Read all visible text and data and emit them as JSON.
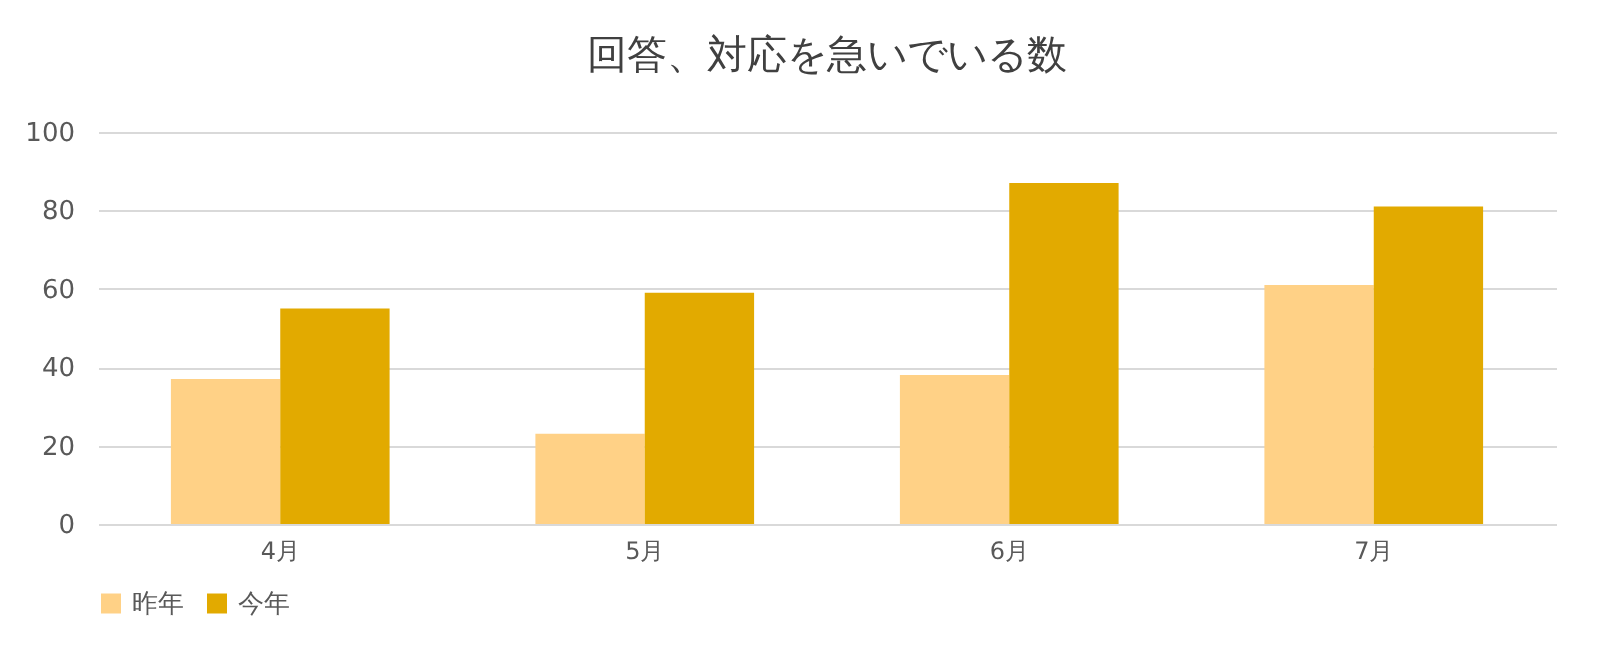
{
  "chart_data": {
    "type": "bar",
    "title": "回答、対応を急いでいる数",
    "categories": [
      "4月",
      "5月",
      "6月",
      "7月"
    ],
    "series": [
      {
        "name": "昨年",
        "color": "#ffd186",
        "values": [
          37,
          23,
          38,
          61
        ]
      },
      {
        "name": "今年",
        "color": "#e2aa00",
        "values": [
          55,
          59,
          87,
          81
        ]
      }
    ],
    "ylim": [
      0,
      100
    ],
    "yticks": [
      0,
      20,
      40,
      60,
      80,
      100
    ],
    "grid": "y",
    "legend": "bottom"
  }
}
